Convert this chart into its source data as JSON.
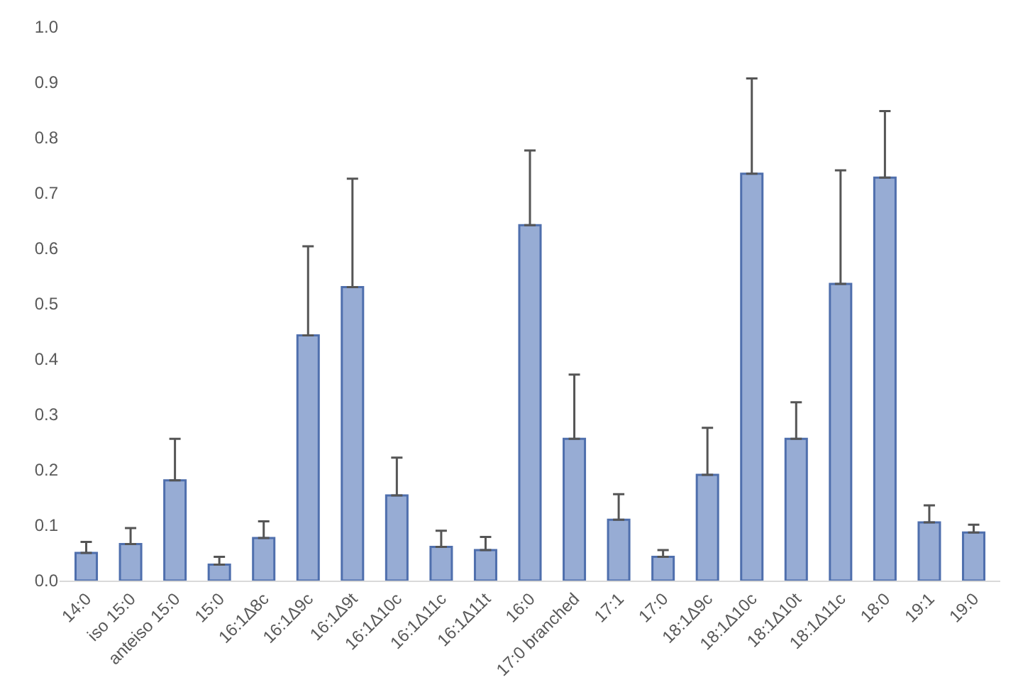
{
  "chart_data": {
    "type": "bar",
    "categories": [
      "14:0",
      "iso 15:0",
      "anteiso 15:0",
      "15:0",
      "16:1Δ8c",
      "16:1Δ9c",
      "16:1Δ9t",
      "16:1Δ10c",
      "16:1Δ11c",
      "16:1Δ11t",
      "16:0",
      "17:0 branched",
      "17:1",
      "17:0",
      "18:1Δ9c",
      "18:1Δ10c",
      "18:1Δ10t",
      "18:1Δ11c",
      "18:0",
      "19:1",
      "19:0"
    ],
    "values": [
      0.05,
      0.066,
      0.181,
      0.029,
      0.077,
      0.443,
      0.53,
      0.154,
      0.061,
      0.055,
      0.642,
      0.256,
      0.11,
      0.043,
      0.191,
      0.735,
      0.256,
      0.536,
      0.728,
      0.105,
      0.087
    ],
    "errors": [
      [
        0.05,
        0.07
      ],
      [
        0.066,
        0.095
      ],
      [
        0.181,
        0.256
      ],
      [
        0.029,
        0.043
      ],
      [
        0.077,
        0.107
      ],
      [
        0.443,
        0.604
      ],
      [
        0.53,
        0.726
      ],
      [
        0.154,
        0.222
      ],
      [
        0.061,
        0.09
      ],
      [
        0.055,
        0.079
      ],
      [
        0.642,
        0.777
      ],
      [
        0.256,
        0.372
      ],
      [
        0.11,
        0.156
      ],
      [
        0.043,
        0.055
      ],
      [
        0.191,
        0.276
      ],
      [
        0.735,
        0.907
      ],
      [
        0.256,
        0.322
      ],
      [
        0.536,
        0.741
      ],
      [
        0.728,
        0.848
      ],
      [
        0.105,
        0.136
      ],
      [
        0.087,
        0.101
      ]
    ],
    "color": "#97acd4",
    "ylim": [
      0,
      1
    ],
    "yticks": [
      {
        "value": 0,
        "label": "0.0"
      },
      0.1,
      0.2,
      0.3,
      0.4,
      0.5,
      0.6,
      0.7,
      0.8,
      0.9,
      {
        "value": 1,
        "label": "1.0"
      }
    ],
    "grid": false
  }
}
